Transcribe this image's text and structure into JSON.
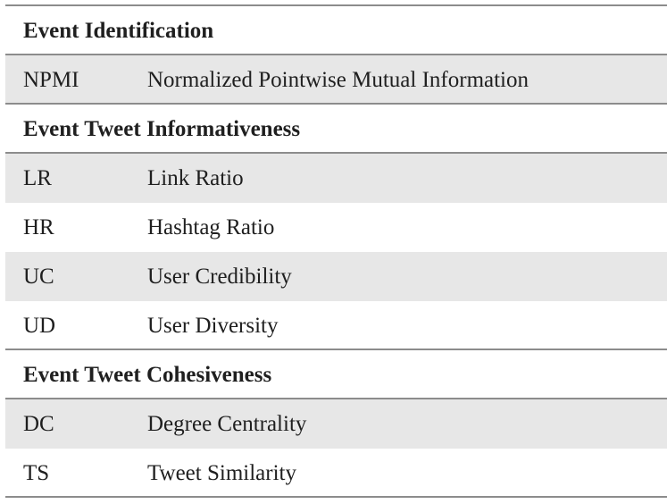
{
  "sections": [
    {
      "title": "Event Identification",
      "rows": [
        {
          "abbr": "NPMI",
          "desc": "Normalized Pointwise Mutual Information"
        }
      ]
    },
    {
      "title": "Event Tweet Informativeness",
      "rows": [
        {
          "abbr": "LR",
          "desc": "Link Ratio"
        },
        {
          "abbr": "HR",
          "desc": "Hashtag Ratio"
        },
        {
          "abbr": "UC",
          "desc": "User Credibility"
        },
        {
          "abbr": "UD",
          "desc": "User Diversity"
        }
      ]
    },
    {
      "title": "Event Tweet Cohesiveness",
      "rows": [
        {
          "abbr": "DC",
          "desc": "Degree Centrality"
        },
        {
          "abbr": "TS",
          "desc": "Tweet Similarity"
        }
      ]
    }
  ]
}
